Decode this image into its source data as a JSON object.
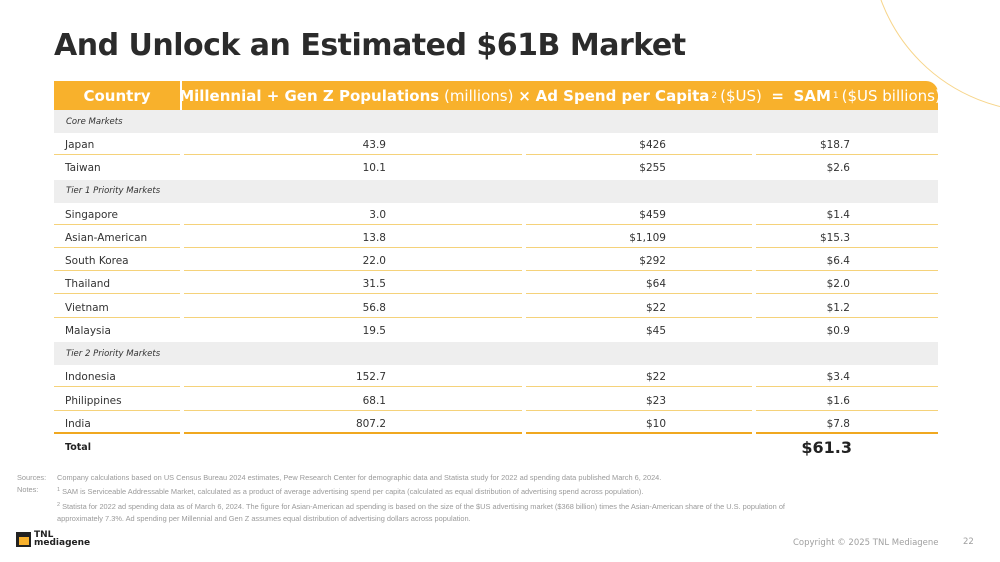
{
  "slide": {
    "title": "And Unlock an Estimated $61B Market",
    "page_number": "22",
    "copyright": "Copyright © 2025 TNL Mediagene",
    "logo": {
      "line1": "TNL",
      "line2": "mediagene"
    }
  },
  "colors": {
    "accent": "#f8b12c",
    "row_rule": "#f5d27a",
    "section_bg": "#eeeeee"
  },
  "table": {
    "header": {
      "country": "Country",
      "pop_bold": "Millennial + Gen Z Populations",
      "pop_unit": "(millions)",
      "times": "×",
      "spend_bold": "Ad Spend per Capita",
      "spend_sup": "2",
      "spend_unit": "($US)",
      "equals": "=",
      "sam_bold": "SAM",
      "sam_sup": "1",
      "sam_unit": "($US billions)"
    },
    "sections": [
      {
        "label": "Core Markets",
        "rows": [
          {
            "country": "Japan",
            "population": "43.9",
            "spend": "$426",
            "sam": "$18.7"
          },
          {
            "country": "Taiwan",
            "population": "10.1",
            "spend": "$255",
            "sam": "$2.6"
          }
        ]
      },
      {
        "label": "Tier 1 Priority Markets",
        "rows": [
          {
            "country": "Singapore",
            "population": "3.0",
            "spend": "$459",
            "sam": "$1.4"
          },
          {
            "country": "Asian-American",
            "population": "13.8",
            "spend": "$1,109",
            "sam": "$15.3"
          },
          {
            "country": "South Korea",
            "population": "22.0",
            "spend": "$292",
            "sam": "$6.4"
          },
          {
            "country": "Thailand",
            "population": "31.5",
            "spend": "$64",
            "sam": "$2.0"
          },
          {
            "country": "Vietnam",
            "population": "56.8",
            "spend": "$22",
            "sam": "$1.2"
          },
          {
            "country": "Malaysia",
            "population": "19.5",
            "spend": "$45",
            "sam": "$0.9"
          }
        ]
      },
      {
        "label": "Tier 2 Priority Markets",
        "rows": [
          {
            "country": "Indonesia",
            "population": "152.7",
            "spend": "$22",
            "sam": "$3.4"
          },
          {
            "country": "Philippines",
            "population": "68.1",
            "spend": "$23",
            "sam": "$1.6"
          },
          {
            "country": "India",
            "population": "807.2",
            "spend": "$10",
            "sam": "$7.8"
          }
        ]
      }
    ],
    "total": {
      "label": "Total",
      "value": "$61.3"
    }
  },
  "footnotes": {
    "sources_label": "Sources:",
    "sources_text": "Company calculations based on US Census Bureau 2024 estimates, Pew Research Center for demographic data and Statista study for 2022 ad spending data published March 6, 2024.",
    "notes_label": "Notes:",
    "note1_sup": "1",
    "note1_text": "SAM is Serviceable Addressable Market, calculated as a product of average advertising spend per capita (calculated as equal distribution of advertising spend across population).",
    "note2_sup": "2",
    "note2_text": "Statista for 2022 ad spending data as of March 6, 2024. The figure for Asian-American ad spending is based on the size of the $US advertising market ($368 billion) times the Asian-American share of the U.S. population of",
    "note2_cont": "approximately 7.3%. Ad spending per Millennial and Gen Z assumes equal distribution of advertising dollars across population."
  }
}
